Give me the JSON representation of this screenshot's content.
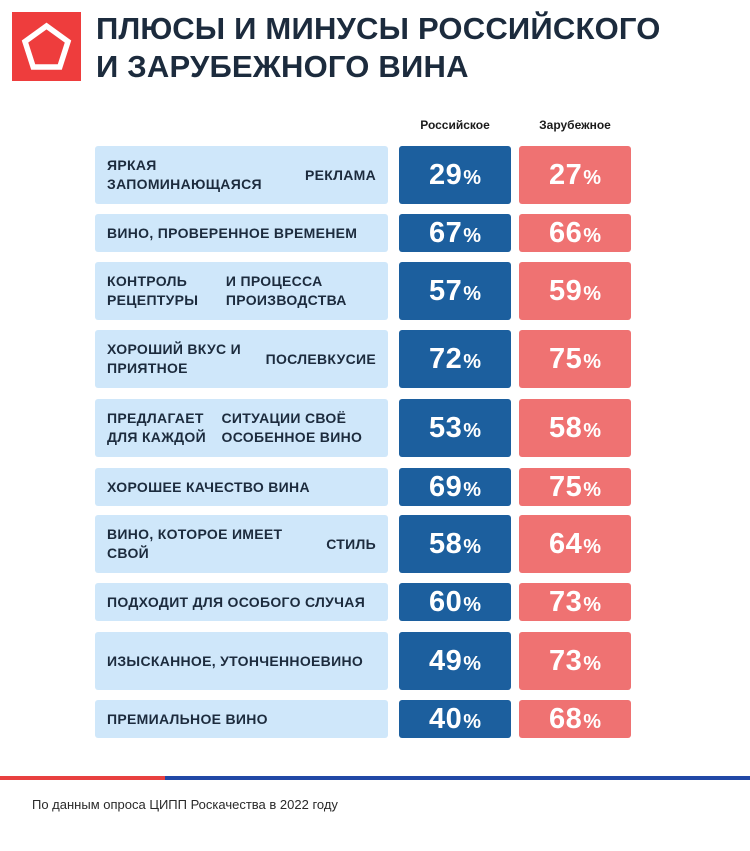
{
  "header": {
    "logo_icon": "pentagon-icon",
    "title_lines": [
      "ПЛЮСЫ И МИНУСЫ РОССИЙСКОГО",
      "И ЗАРУБЕЖНОГО ВИНА"
    ]
  },
  "colors": {
    "russian": "#1c5f9e",
    "foreign": "#ef7272",
    "label_bg": "#cfe7fa",
    "accent_red": "#e8403f",
    "accent_blue": "#2148a6"
  },
  "chart_data": {
    "type": "table",
    "columns": [
      "Российское",
      "Зарубежное"
    ],
    "value_suffix": "%",
    "rows": [
      {
        "label_lines": [
          "ЯРКАЯ ЗАПОМИНАЮЩАЯСЯ",
          "РЕКЛАМА"
        ],
        "russian": 29,
        "foreign": 27
      },
      {
        "label_lines": [
          "ВИНО, ПРОВЕРЕННОЕ ВРЕМЕНЕМ"
        ],
        "russian": 67,
        "foreign": 66
      },
      {
        "label_lines": [
          "КОНТРОЛЬ РЕЦЕПТУРЫ",
          "И ПРОЦЕССА ПРОИЗВОДСТВА"
        ],
        "russian": 57,
        "foreign": 59
      },
      {
        "label_lines": [
          "ХОРОШИЙ ВКУС И ПРИЯТНОЕ",
          "ПОСЛЕВКУСИЕ"
        ],
        "russian": 72,
        "foreign": 75
      },
      {
        "label_lines": [
          "ПРЕДЛАГАЕТ ДЛЯ КАЖДОЙ",
          "СИТУАЦИИ СВОЁ ОСОБЕННОЕ ВИНО"
        ],
        "russian": 53,
        "foreign": 58
      },
      {
        "label_lines": [
          "ХОРОШЕЕ КАЧЕСТВО ВИНА"
        ],
        "russian": 69,
        "foreign": 75
      },
      {
        "label_lines": [
          "ВИНО, КОТОРОЕ ИМЕЕТ СВОЙ",
          "СТИЛЬ"
        ],
        "russian": 58,
        "foreign": 64
      },
      {
        "label_lines": [
          "ПОДХОДИТ ДЛЯ ОСОБОГО СЛУЧАЯ"
        ],
        "russian": 60,
        "foreign": 73
      },
      {
        "label_lines": [
          "ИЗЫСКАННОЕ, УТОНЧЕННОЕ",
          "ВИНО"
        ],
        "russian": 49,
        "foreign": 73
      },
      {
        "label_lines": [
          "ПРЕМИАЛЬНОЕ ВИНО"
        ],
        "russian": 40,
        "foreign": 68
      }
    ]
  },
  "footer": {
    "source": "По данным опроса ЦИПП Роскачества в 2022 году"
  }
}
